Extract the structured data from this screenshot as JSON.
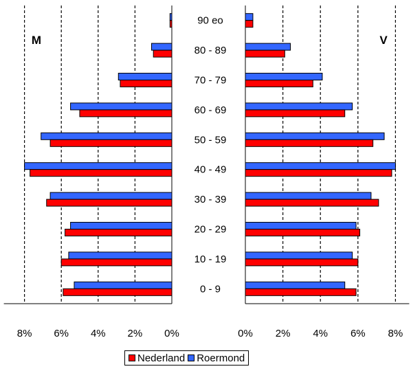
{
  "chart_data": {
    "type": "bar",
    "orientation": "horizontal",
    "subtype": "population-pyramid",
    "categories": [
      "0 - 9",
      "10 - 19",
      "20 - 29",
      "30 - 39",
      "40 - 49",
      "50 - 59",
      "60 - 69",
      "70 - 79",
      "80 - 89",
      "90 eo"
    ],
    "panels": [
      {
        "label": "M",
        "direction": "left",
        "xticks": [
          "8%",
          "6%",
          "4%",
          "2%",
          "0%"
        ],
        "xlim": [
          0,
          8
        ],
        "series": [
          {
            "name": "Nederland",
            "values": [
              5.9,
              6.0,
              5.8,
              6.8,
              7.7,
              6.6,
              5.0,
              2.8,
              1.0,
              0.1
            ]
          },
          {
            "name": "Roermond",
            "values": [
              5.3,
              5.6,
              5.5,
              6.6,
              8.0,
              7.1,
              5.5,
              2.9,
              1.1,
              0.1
            ]
          }
        ]
      },
      {
        "label": "V",
        "direction": "right",
        "xticks": [
          "0%",
          "2%",
          "4%",
          "6%",
          "8%"
        ],
        "xlim": [
          0,
          8
        ],
        "series": [
          {
            "name": "Nederland",
            "values": [
              5.9,
              6.0,
              6.1,
              7.1,
              7.8,
              6.8,
              5.3,
              3.6,
              2.1,
              0.4
            ]
          },
          {
            "name": "Roermond",
            "values": [
              5.3,
              5.7,
              5.9,
              6.7,
              8.0,
              7.4,
              5.7,
              4.1,
              2.4,
              0.4
            ]
          }
        ]
      }
    ],
    "colors": {
      "Nederland": "#ff0000",
      "Roermond": "#3366ff"
    },
    "gridlines": "dashed-vertical",
    "legend": "bottom-center"
  }
}
